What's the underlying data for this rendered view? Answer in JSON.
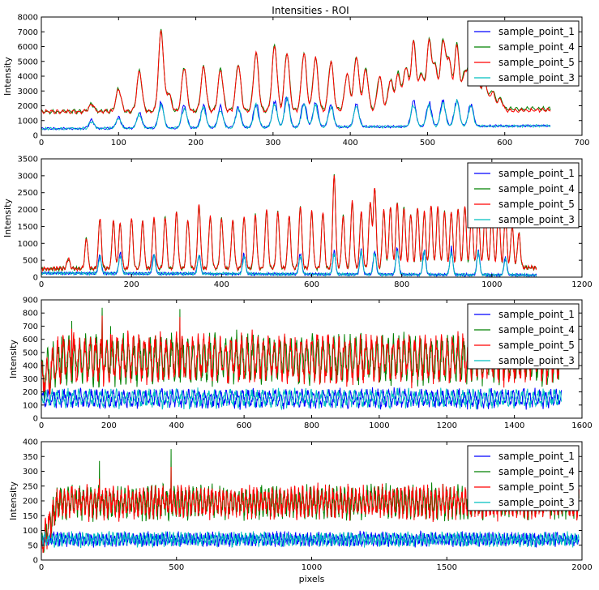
{
  "title": "Intensities - ROI",
  "chart_data": [
    {
      "type": "line",
      "title": "Intensities - ROI",
      "xlabel": "",
      "ylabel": "Intensity",
      "xlim": [
        0,
        700
      ],
      "ylim": [
        0,
        8000
      ],
      "xticks": [
        0,
        100,
        200,
        300,
        400,
        500,
        600,
        700
      ],
      "yticks": [
        0,
        1000,
        2000,
        3000,
        4000,
        5000,
        6000,
        7000,
        8000
      ],
      "n_points": 660,
      "peaks_high": [
        [
          65,
          2200
        ],
        [
          100,
          3400
        ],
        [
          127,
          4800
        ],
        [
          155,
          8000
        ],
        [
          165,
          3000
        ],
        [
          185,
          5100
        ],
        [
          210,
          5100
        ],
        [
          232,
          4900
        ],
        [
          255,
          5300
        ],
        [
          278,
          6200
        ],
        [
          302,
          6800
        ],
        [
          318,
          6200
        ],
        [
          340,
          6200
        ],
        [
          355,
          5800
        ],
        [
          375,
          5500
        ],
        [
          396,
          4500
        ],
        [
          408,
          5900
        ],
        [
          420,
          4900
        ],
        [
          438,
          4300
        ],
        [
          452,
          4000
        ],
        [
          462,
          4500
        ],
        [
          472,
          5000
        ],
        [
          482,
          7000
        ],
        [
          492,
          4500
        ],
        [
          502,
          7000
        ],
        [
          510,
          5000
        ],
        [
          520,
          7100
        ],
        [
          528,
          5500
        ],
        [
          538,
          6700
        ],
        [
          548,
          4500
        ],
        [
          556,
          5700
        ],
        [
          565,
          4000
        ],
        [
          574,
          4000
        ],
        [
          584,
          3100
        ],
        [
          594,
          2500
        ]
      ],
      "peaks_low": [
        [
          65,
          1000
        ],
        [
          100,
          1200
        ],
        [
          127,
          1500
        ],
        [
          155,
          2200
        ],
        [
          185,
          2000
        ],
        [
          210,
          2000
        ],
        [
          232,
          1800
        ],
        [
          255,
          1800
        ],
        [
          278,
          2100
        ],
        [
          302,
          2200
        ],
        [
          318,
          2600
        ],
        [
          340,
          2200
        ],
        [
          355,
          2100
        ],
        [
          375,
          2000
        ],
        [
          408,
          2000
        ],
        [
          482,
          2100
        ],
        [
          502,
          2100
        ],
        [
          520,
          2200
        ],
        [
          538,
          2300
        ],
        [
          556,
          2000
        ]
      ],
      "series": [
        {
          "name": "sample_point_1",
          "color": "#0000ff",
          "base": 450,
          "end": 650,
          "amp_scale": 1.0,
          "noise": 80,
          "group": "low"
        },
        {
          "name": "sample_point_4",
          "color": "#008000",
          "base": 1600,
          "end": 1800,
          "amp_scale": 1.0,
          "noise": 150,
          "group": "high"
        },
        {
          "name": "sample_point_5",
          "color": "#ff0000",
          "base": 1600,
          "end": 1700,
          "amp_scale": 1.0,
          "noise": 140,
          "group": "high"
        },
        {
          "name": "sample_point_3",
          "color": "#00bfbf",
          "base": 450,
          "end": 650,
          "amp_scale": 0.9,
          "noise": 90,
          "group": "low"
        }
      ],
      "legend": "upper right"
    },
    {
      "type": "line",
      "xlabel": "",
      "ylabel": "Intensity",
      "xlim": [
        0,
        1200
      ],
      "ylim": [
        0,
        3500
      ],
      "xticks": [
        0,
        200,
        400,
        600,
        800,
        1000,
        1200
      ],
      "yticks": [
        0,
        500,
        1000,
        1500,
        2000,
        2500,
        3000,
        3500
      ],
      "n_points": 1100,
      "peaks_high": [
        [
          60,
          600
        ],
        [
          100,
          1300
        ],
        [
          130,
          2000
        ],
        [
          160,
          1900
        ],
        [
          175,
          1800
        ],
        [
          200,
          2000
        ],
        [
          225,
          1900
        ],
        [
          250,
          2000
        ],
        [
          275,
          2050
        ],
        [
          300,
          2200
        ],
        [
          325,
          1950
        ],
        [
          350,
          2450
        ],
        [
          375,
          2050
        ],
        [
          400,
          2000
        ],
        [
          425,
          1900
        ],
        [
          450,
          2050
        ],
        [
          475,
          2100
        ],
        [
          500,
          2300
        ],
        [
          525,
          2200
        ],
        [
          550,
          2050
        ],
        [
          575,
          2400
        ],
        [
          600,
          2200
        ],
        [
          625,
          2200
        ],
        [
          650,
          3450
        ],
        [
          670,
          2050
        ],
        [
          690,
          2550
        ],
        [
          710,
          2200
        ],
        [
          730,
          2550
        ],
        [
          740,
          3000
        ],
        [
          760,
          2250
        ],
        [
          775,
          2350
        ],
        [
          790,
          2500
        ],
        [
          805,
          2350
        ],
        [
          820,
          2150
        ],
        [
          835,
          2350
        ],
        [
          850,
          2200
        ],
        [
          865,
          2400
        ],
        [
          880,
          2350
        ],
        [
          895,
          2200
        ],
        [
          910,
          2200
        ],
        [
          925,
          2300
        ],
        [
          940,
          2400
        ],
        [
          955,
          2200
        ],
        [
          970,
          2150
        ],
        [
          985,
          2200
        ],
        [
          1000,
          2100
        ],
        [
          1015,
          2350
        ],
        [
          1030,
          2000
        ],
        [
          1045,
          1700
        ],
        [
          1060,
          1450
        ]
      ],
      "peaks_low": [
        [
          130,
          650
        ],
        [
          175,
          700
        ],
        [
          250,
          700
        ],
        [
          350,
          700
        ],
        [
          450,
          700
        ],
        [
          575,
          750
        ],
        [
          650,
          800
        ],
        [
          710,
          850
        ],
        [
          740,
          850
        ],
        [
          790,
          900
        ],
        [
          850,
          850
        ],
        [
          910,
          880
        ],
        [
          970,
          850
        ],
        [
          1030,
          650
        ]
      ],
      "series": [
        {
          "name": "sample_point_1",
          "color": "#0000ff",
          "base": 120,
          "end": 60,
          "amp_scale": 1.0,
          "noise": 40,
          "group": "low"
        },
        {
          "name": "sample_point_4",
          "color": "#008000",
          "base": 250,
          "end": 280,
          "amp_scale": 1.0,
          "noise": 60,
          "group": "high"
        },
        {
          "name": "sample_point_5",
          "color": "#ff0000",
          "base": 250,
          "end": 280,
          "amp_scale": 1.0,
          "noise": 60,
          "group": "high"
        },
        {
          "name": "sample_point_3",
          "color": "#00bfbf",
          "base": 120,
          "end": 60,
          "amp_scale": 0.9,
          "noise": 45,
          "group": "low"
        }
      ],
      "legend": "upper right"
    },
    {
      "type": "line",
      "xlabel": "",
      "ylabel": "Intensity",
      "xlim": [
        0,
        1600
      ],
      "ylim": [
        0,
        900
      ],
      "xticks": [
        0,
        200,
        400,
        600,
        800,
        1000,
        1200,
        1400,
        1600
      ],
      "yticks": [
        0,
        100,
        200,
        300,
        400,
        500,
        600,
        700,
        800,
        900
      ],
      "n_points": 1540,
      "band": {
        "high_center": 450,
        "high_amp": 170,
        "high_noise": 60,
        "low_center": 150,
        "low_amp": 60,
        "low_noise": 30,
        "period": 16
      },
      "spikes": [
        [
          90,
          740
        ],
        [
          180,
          840
        ],
        [
          410,
          830
        ],
        [
          205,
          700
        ],
        [
          60,
          620
        ],
        [
          880,
          640
        ]
      ],
      "series": [
        {
          "name": "sample_point_1",
          "color": "#0000ff",
          "group": "low"
        },
        {
          "name": "sample_point_4",
          "color": "#008000",
          "group": "high"
        },
        {
          "name": "sample_point_5",
          "color": "#ff0000",
          "group": "high"
        },
        {
          "name": "sample_point_3",
          "color": "#00bfbf",
          "group": "low"
        }
      ],
      "legend": "upper right"
    },
    {
      "type": "line",
      "xlabel": "pixels",
      "ylabel": "Intensity",
      "xlim": [
        0,
        2000
      ],
      "ylim": [
        0,
        400
      ],
      "xticks": [
        0,
        500,
        1000,
        1500,
        2000
      ],
      "yticks": [
        0,
        50,
        100,
        150,
        200,
        250,
        300,
        350,
        400
      ],
      "n_points": 1990,
      "band": {
        "high_center": 195,
        "high_amp": 45,
        "high_noise": 25,
        "low_center": 70,
        "low_amp": 18,
        "low_noise": 12,
        "period": 14
      },
      "spikes": [
        [
          480,
          375
        ],
        [
          215,
          335
        ],
        [
          1600,
          300
        ],
        [
          1930,
          240
        ]
      ],
      "series": [
        {
          "name": "sample_point_1",
          "color": "#0000ff",
          "group": "low"
        },
        {
          "name": "sample_point_4",
          "color": "#008000",
          "group": "high"
        },
        {
          "name": "sample_point_5",
          "color": "#ff0000",
          "group": "high"
        },
        {
          "name": "sample_point_3",
          "color": "#00bfbf",
          "group": "low"
        }
      ],
      "legend": "upper right"
    }
  ]
}
